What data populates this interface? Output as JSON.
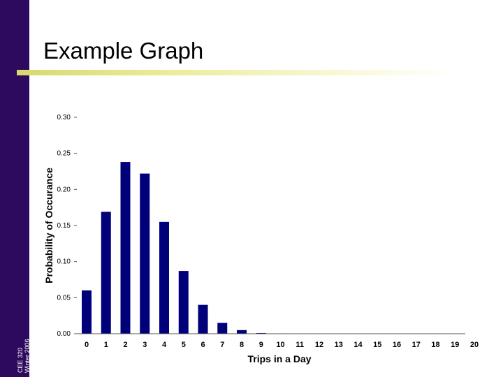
{
  "sidebar": {
    "line1": "CEE 320",
    "line2": "Winter 2006"
  },
  "slide": {
    "title": "Example Graph"
  },
  "colors": {
    "bar": "#00007a",
    "sidebar": "#2e0a5e"
  },
  "chart_data": {
    "type": "bar",
    "title": "",
    "xlabel": "Trips in a Day",
    "ylabel": "Probability of Occurance",
    "categories": [
      "0",
      "1",
      "2",
      "3",
      "4",
      "5",
      "6",
      "7",
      "8",
      "9",
      "10",
      "11",
      "12",
      "13",
      "14",
      "15",
      "16",
      "17",
      "18",
      "19",
      "20"
    ],
    "values": [
      0.06,
      0.169,
      0.238,
      0.222,
      0.155,
      0.087,
      0.04,
      0.015,
      0.005,
      0.001,
      0.0005,
      0.0002,
      0,
      0,
      0,
      0,
      0,
      0,
      0,
      0,
      0
    ],
    "ylim": [
      0,
      0.3
    ],
    "yticks": [
      "0.00",
      "0.05",
      "0.10",
      "0.15",
      "0.20",
      "0.25",
      "0.30"
    ],
    "grid": false,
    "legend": "none"
  }
}
